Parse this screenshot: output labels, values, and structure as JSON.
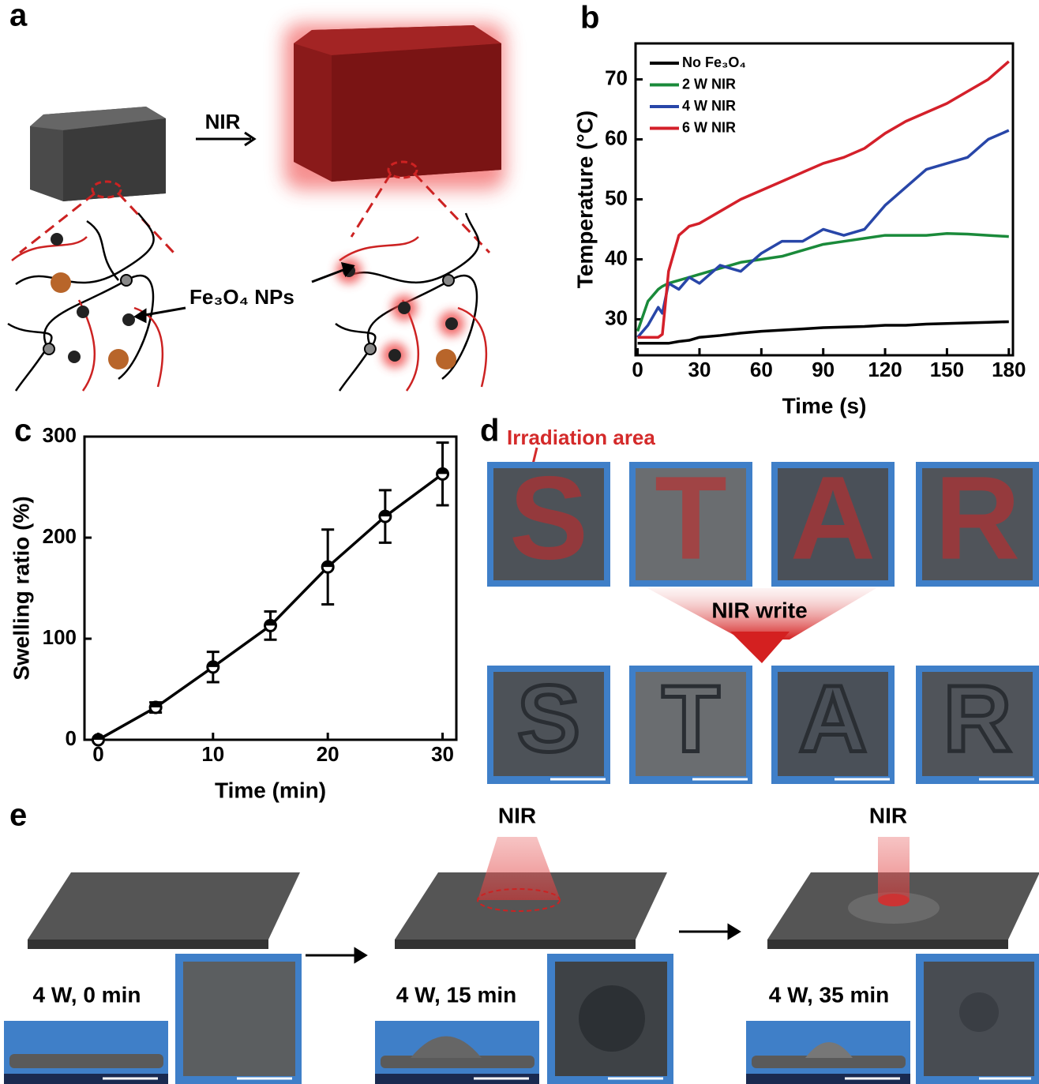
{
  "chart_data": [
    {
      "type": "line",
      "label": "b",
      "x_label": "Time (s)",
      "y_label": "Temperature (°C)",
      "x": [
        0,
        5,
        10,
        12,
        15,
        20,
        25,
        30,
        40,
        50,
        60,
        70,
        80,
        90,
        100,
        110,
        120,
        130,
        140,
        150,
        160,
        170,
        180
      ],
      "series": [
        {
          "name": "No Fe₃O₄",
          "color": "#000000",
          "values": [
            26,
            26,
            26,
            26,
            26,
            26.3,
            26.5,
            27,
            27.3,
            27.7,
            28,
            28.2,
            28.4,
            28.6,
            28.7,
            28.8,
            29,
            29,
            29.2,
            29.3,
            29.4,
            29.5,
            29.6
          ]
        },
        {
          "name": "2 W NIR",
          "color": "#1a8a3a",
          "values": [
            28,
            33,
            35,
            35.5,
            36,
            36.5,
            37,
            37.5,
            38.5,
            39.5,
            40,
            40.5,
            41.5,
            42.5,
            43,
            43.5,
            44,
            44,
            44,
            44.3,
            44.2,
            44,
            43.8
          ]
        },
        {
          "name": "4 W NIR",
          "color": "#2846a8",
          "values": [
            27,
            29,
            32,
            31,
            36,
            35,
            37,
            36,
            39,
            38,
            41,
            43,
            43,
            45,
            44,
            45,
            49,
            52,
            55,
            56,
            57,
            60,
            61.5
          ]
        },
        {
          "name": "6 W NIR",
          "color": "#d4202a",
          "values": [
            27,
            27,
            27,
            27.5,
            38,
            44,
            45.5,
            46,
            48,
            50,
            51.5,
            53,
            54.5,
            56,
            57,
            58.5,
            61,
            63,
            64.5,
            66,
            68,
            70,
            73
          ]
        }
      ],
      "xlim": [
        -1,
        182
      ],
      "ylim": [
        24,
        76
      ],
      "xticks": [
        0,
        30,
        60,
        90,
        120,
        150,
        180
      ],
      "yticks": [
        30,
        40,
        50,
        60,
        70
      ],
      "legend": "upper left"
    },
    {
      "type": "line",
      "label": "c",
      "x_label": "Time (min)",
      "y_label": "Swelling ratio (%)",
      "x": [
        0,
        5,
        10,
        15,
        20,
        25,
        30
      ],
      "values": [
        0,
        32,
        72,
        113,
        171,
        221,
        263
      ],
      "errors": [
        0,
        5,
        15,
        14,
        37,
        26,
        31
      ],
      "color": "#000000",
      "xlim": [
        -1.2,
        31.2
      ],
      "ylim": [
        0,
        300
      ],
      "xticks": [
        0,
        10,
        20,
        30
      ],
      "yticks": [
        0,
        100,
        200,
        300
      ]
    }
  ],
  "panels": {
    "a": {
      "label": "a",
      "arrow_label": "NIR",
      "particle_label": "Fe₃O₄ NPs"
    },
    "d": {
      "label": "d",
      "annotation": "Irradiation area",
      "letters": [
        "S",
        "T",
        "A",
        "R"
      ],
      "arrow_label": "NIR write"
    },
    "e": {
      "label": "e",
      "beam_labels": [
        "NIR",
        "NIR"
      ],
      "captions": [
        "4 W, 0 min",
        "4 W, 15 min",
        "4 W, 35 min"
      ]
    }
  }
}
